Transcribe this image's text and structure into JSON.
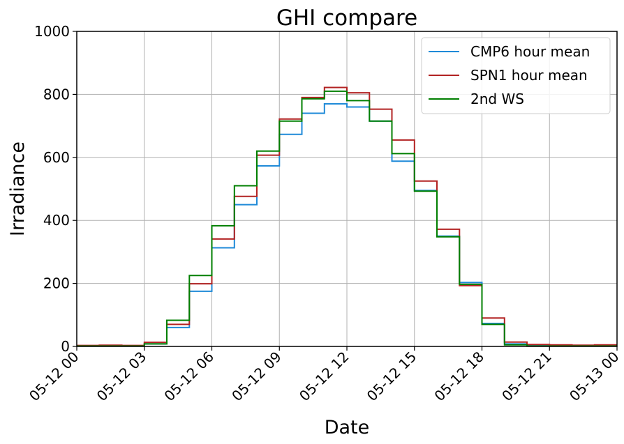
{
  "chart_data": {
    "type": "line",
    "title": "GHI compare",
    "xlabel": "Date",
    "ylabel": "Irradiance",
    "ylim": [
      0,
      1000
    ],
    "xlim": [
      "05-12 00",
      "05-13 00"
    ],
    "x_ticks": [
      "05-12 00",
      "05-12 03",
      "05-12 06",
      "05-12 09",
      "05-12 12",
      "05-12 15",
      "05-12 18",
      "05-12 21",
      "05-13 00"
    ],
    "y_ticks": [
      0,
      200,
      400,
      600,
      800,
      1000
    ],
    "grid": true,
    "legend_position": "top-right",
    "step": "post",
    "x": [
      "05-12 00",
      "05-12 01",
      "05-12 02",
      "05-12 03",
      "05-12 04",
      "05-12 05",
      "05-12 06",
      "05-12 07",
      "05-12 08",
      "05-12 09",
      "05-12 10",
      "05-12 11",
      "05-12 12",
      "05-12 13",
      "05-12 14",
      "05-12 15",
      "05-12 16",
      "05-12 17",
      "05-12 18",
      "05-12 19",
      "05-12 20",
      "05-12 21",
      "05-12 22",
      "05-12 23",
      "05-13 00"
    ],
    "series": [
      {
        "name": "CMP6 hour mean",
        "color": "#1f8ad8",
        "values": [
          2,
          2,
          2,
          8,
          60,
          175,
          313,
          450,
          573,
          673,
          740,
          770,
          760,
          715,
          588,
          495,
          350,
          203,
          73,
          8,
          3,
          2,
          2,
          2,
          2
        ]
      },
      {
        "name": "SPN1 hour mean",
        "color": "#b22222",
        "values": [
          3,
          4,
          3,
          13,
          70,
          199,
          341,
          476,
          607,
          722,
          790,
          822,
          805,
          753,
          655,
          525,
          372,
          193,
          90,
          14,
          6,
          5,
          4,
          5,
          5
        ]
      },
      {
        "name": "2nd WS",
        "color": "#007f00",
        "values": [
          1,
          1,
          1,
          8,
          83,
          225,
          383,
          510,
          620,
          715,
          786,
          810,
          780,
          715,
          612,
          493,
          348,
          197,
          70,
          5,
          1,
          1,
          1,
          1,
          1
        ]
      }
    ]
  }
}
